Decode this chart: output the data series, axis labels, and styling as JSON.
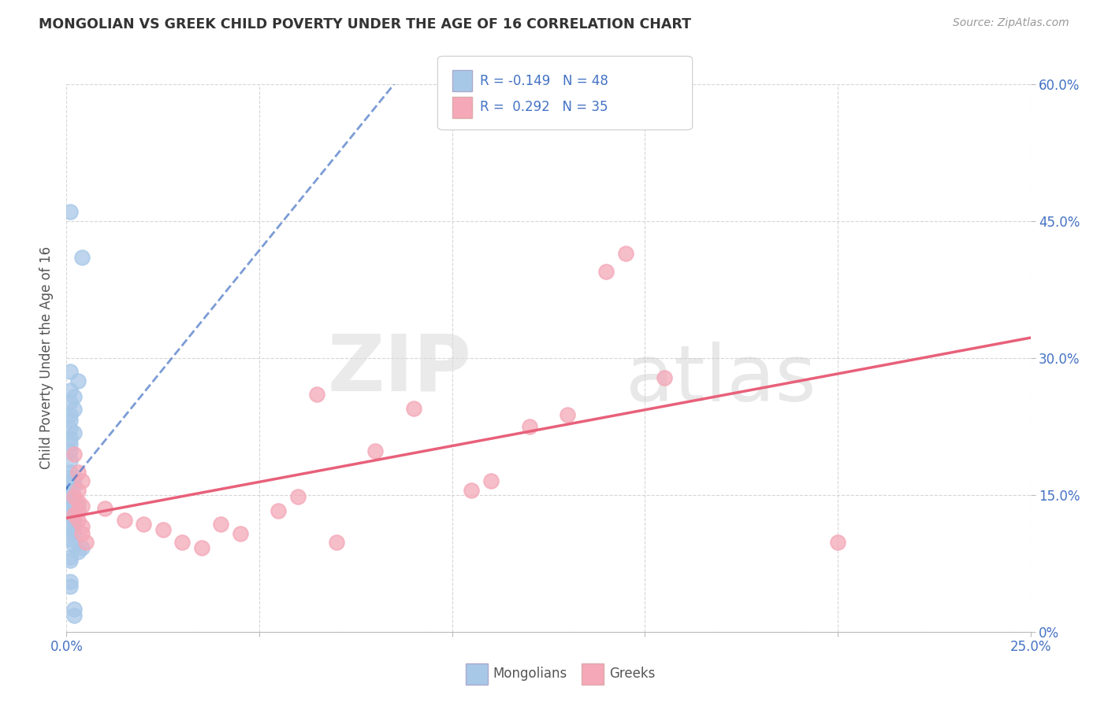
{
  "title": "MONGOLIAN VS GREEK CHILD POVERTY UNDER THE AGE OF 16 CORRELATION CHART",
  "source": "Source: ZipAtlas.com",
  "ylabel": "Child Poverty Under the Age of 16",
  "xlim": [
    0.0,
    0.25
  ],
  "ylim": [
    0.0,
    0.6
  ],
  "xticks": [
    0.0,
    0.05,
    0.1,
    0.15,
    0.2,
    0.25
  ],
  "yticks": [
    0.0,
    0.15,
    0.3,
    0.45,
    0.6
  ],
  "mongolian_R": -0.149,
  "mongolian_N": 48,
  "greek_R": 0.292,
  "greek_N": 35,
  "mongolian_color": "#a8c8e8",
  "greek_color": "#f4a8b8",
  "mongolian_line_color": "#4472C4",
  "greek_line_color": "#e8607a",
  "mongolian_scatter": [
    [
      0.001,
      0.46
    ],
    [
      0.004,
      0.41
    ],
    [
      0.001,
      0.285
    ],
    [
      0.003,
      0.275
    ],
    [
      0.001,
      0.265
    ],
    [
      0.002,
      0.258
    ],
    [
      0.001,
      0.252
    ],
    [
      0.002,
      0.244
    ],
    [
      0.001,
      0.238
    ],
    [
      0.001,
      0.232
    ],
    [
      0.001,
      0.222
    ],
    [
      0.002,
      0.218
    ],
    [
      0.001,
      0.212
    ],
    [
      0.001,
      0.206
    ],
    [
      0.001,
      0.198
    ],
    [
      0.001,
      0.188
    ],
    [
      0.001,
      0.175
    ],
    [
      0.001,
      0.17
    ],
    [
      0.002,
      0.168
    ],
    [
      0.001,
      0.162
    ],
    [
      0.002,
      0.16
    ],
    [
      0.001,
      0.157
    ],
    [
      0.001,
      0.152
    ],
    [
      0.001,
      0.15
    ],
    [
      0.001,
      0.148
    ],
    [
      0.002,
      0.145
    ],
    [
      0.001,
      0.142
    ],
    [
      0.002,
      0.14
    ],
    [
      0.003,
      0.138
    ],
    [
      0.001,
      0.135
    ],
    [
      0.002,
      0.132
    ],
    [
      0.001,
      0.128
    ],
    [
      0.001,
      0.125
    ],
    [
      0.002,
      0.122
    ],
    [
      0.002,
      0.118
    ],
    [
      0.001,
      0.115
    ],
    [
      0.002,
      0.11
    ],
    [
      0.001,
      0.108
    ],
    [
      0.001,
      0.102
    ],
    [
      0.002,
      0.095
    ],
    [
      0.004,
      0.092
    ],
    [
      0.003,
      0.088
    ],
    [
      0.001,
      0.082
    ],
    [
      0.001,
      0.078
    ],
    [
      0.001,
      0.055
    ],
    [
      0.001,
      0.05
    ],
    [
      0.002,
      0.025
    ],
    [
      0.002,
      0.018
    ]
  ],
  "greek_scatter": [
    [
      0.002,
      0.195
    ],
    [
      0.003,
      0.175
    ],
    [
      0.004,
      0.165
    ],
    [
      0.003,
      0.155
    ],
    [
      0.002,
      0.148
    ],
    [
      0.003,
      0.143
    ],
    [
      0.004,
      0.138
    ],
    [
      0.003,
      0.133
    ],
    [
      0.002,
      0.128
    ],
    [
      0.003,
      0.122
    ],
    [
      0.004,
      0.115
    ],
    [
      0.004,
      0.108
    ],
    [
      0.005,
      0.098
    ],
    [
      0.01,
      0.135
    ],
    [
      0.015,
      0.122
    ],
    [
      0.02,
      0.118
    ],
    [
      0.025,
      0.112
    ],
    [
      0.03,
      0.098
    ],
    [
      0.035,
      0.092
    ],
    [
      0.04,
      0.118
    ],
    [
      0.045,
      0.108
    ],
    [
      0.055,
      0.133
    ],
    [
      0.06,
      0.148
    ],
    [
      0.065,
      0.26
    ],
    [
      0.07,
      0.098
    ],
    [
      0.08,
      0.198
    ],
    [
      0.09,
      0.245
    ],
    [
      0.105,
      0.155
    ],
    [
      0.11,
      0.165
    ],
    [
      0.12,
      0.225
    ],
    [
      0.13,
      0.238
    ],
    [
      0.14,
      0.395
    ],
    [
      0.145,
      0.415
    ],
    [
      0.155,
      0.278
    ],
    [
      0.2,
      0.098
    ]
  ],
  "watermark_zip": "ZIP",
  "watermark_atlas": "atlas",
  "background_color": "#ffffff",
  "grid_color": "#cccccc"
}
